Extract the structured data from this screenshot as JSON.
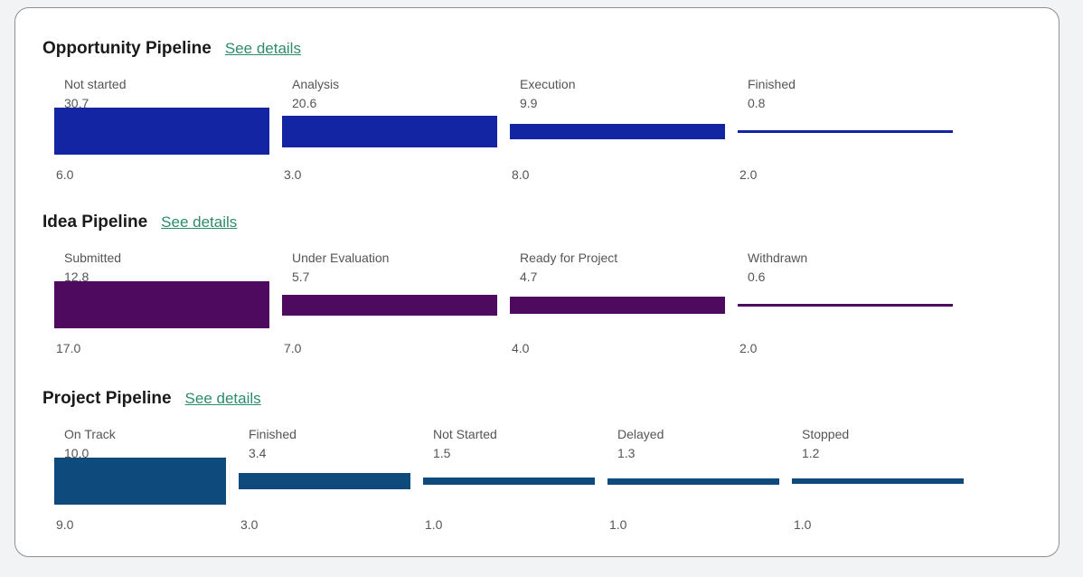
{
  "pipelines": [
    {
      "title": "Opportunity Pipeline",
      "link": "See details",
      "color": "#1425a3",
      "stages": [
        {
          "label": "Not started",
          "value": "30.7",
          "count": "6.0",
          "amount": 30.7
        },
        {
          "label": "Analysis",
          "value": "20.6",
          "count": "3.0",
          "amount": 20.6
        },
        {
          "label": "Execution",
          "value": "9.9",
          "count": "8.0",
          "amount": 9.9
        },
        {
          "label": "Finished",
          "value": "0.8",
          "count": "2.0",
          "amount": 0.8
        }
      ]
    },
    {
      "title": "Idea Pipeline",
      "link": "See details",
      "color": "#4d0a5e",
      "stages": [
        {
          "label": "Submitted",
          "value": "12.8",
          "count": "17.0",
          "amount": 12.8
        },
        {
          "label": "Under Evaluation",
          "value": "5.7",
          "count": "7.0",
          "amount": 5.7
        },
        {
          "label": "Ready for Project",
          "value": "4.7",
          "count": "4.0",
          "amount": 4.7
        },
        {
          "label": "Withdrawn",
          "value": "0.6",
          "count": "2.0",
          "amount": 0.6
        }
      ]
    },
    {
      "title": "Project Pipeline",
      "link": "See details",
      "color": "#0f4a7d",
      "stages": [
        {
          "label": "On Track",
          "value": "10.0",
          "count": "9.0",
          "amount": 10.0
        },
        {
          "label": "Finished",
          "value": "3.4",
          "count": "3.0",
          "amount": 3.4
        },
        {
          "label": "Not Started",
          "value": "1.5",
          "count": "1.0",
          "amount": 1.5
        },
        {
          "label": "Delayed",
          "value": "1.3",
          "count": "1.0",
          "amount": 1.3
        },
        {
          "label": "Stopped",
          "value": "1.2",
          "count": "1.0",
          "amount": 1.2
        }
      ]
    }
  ]
}
